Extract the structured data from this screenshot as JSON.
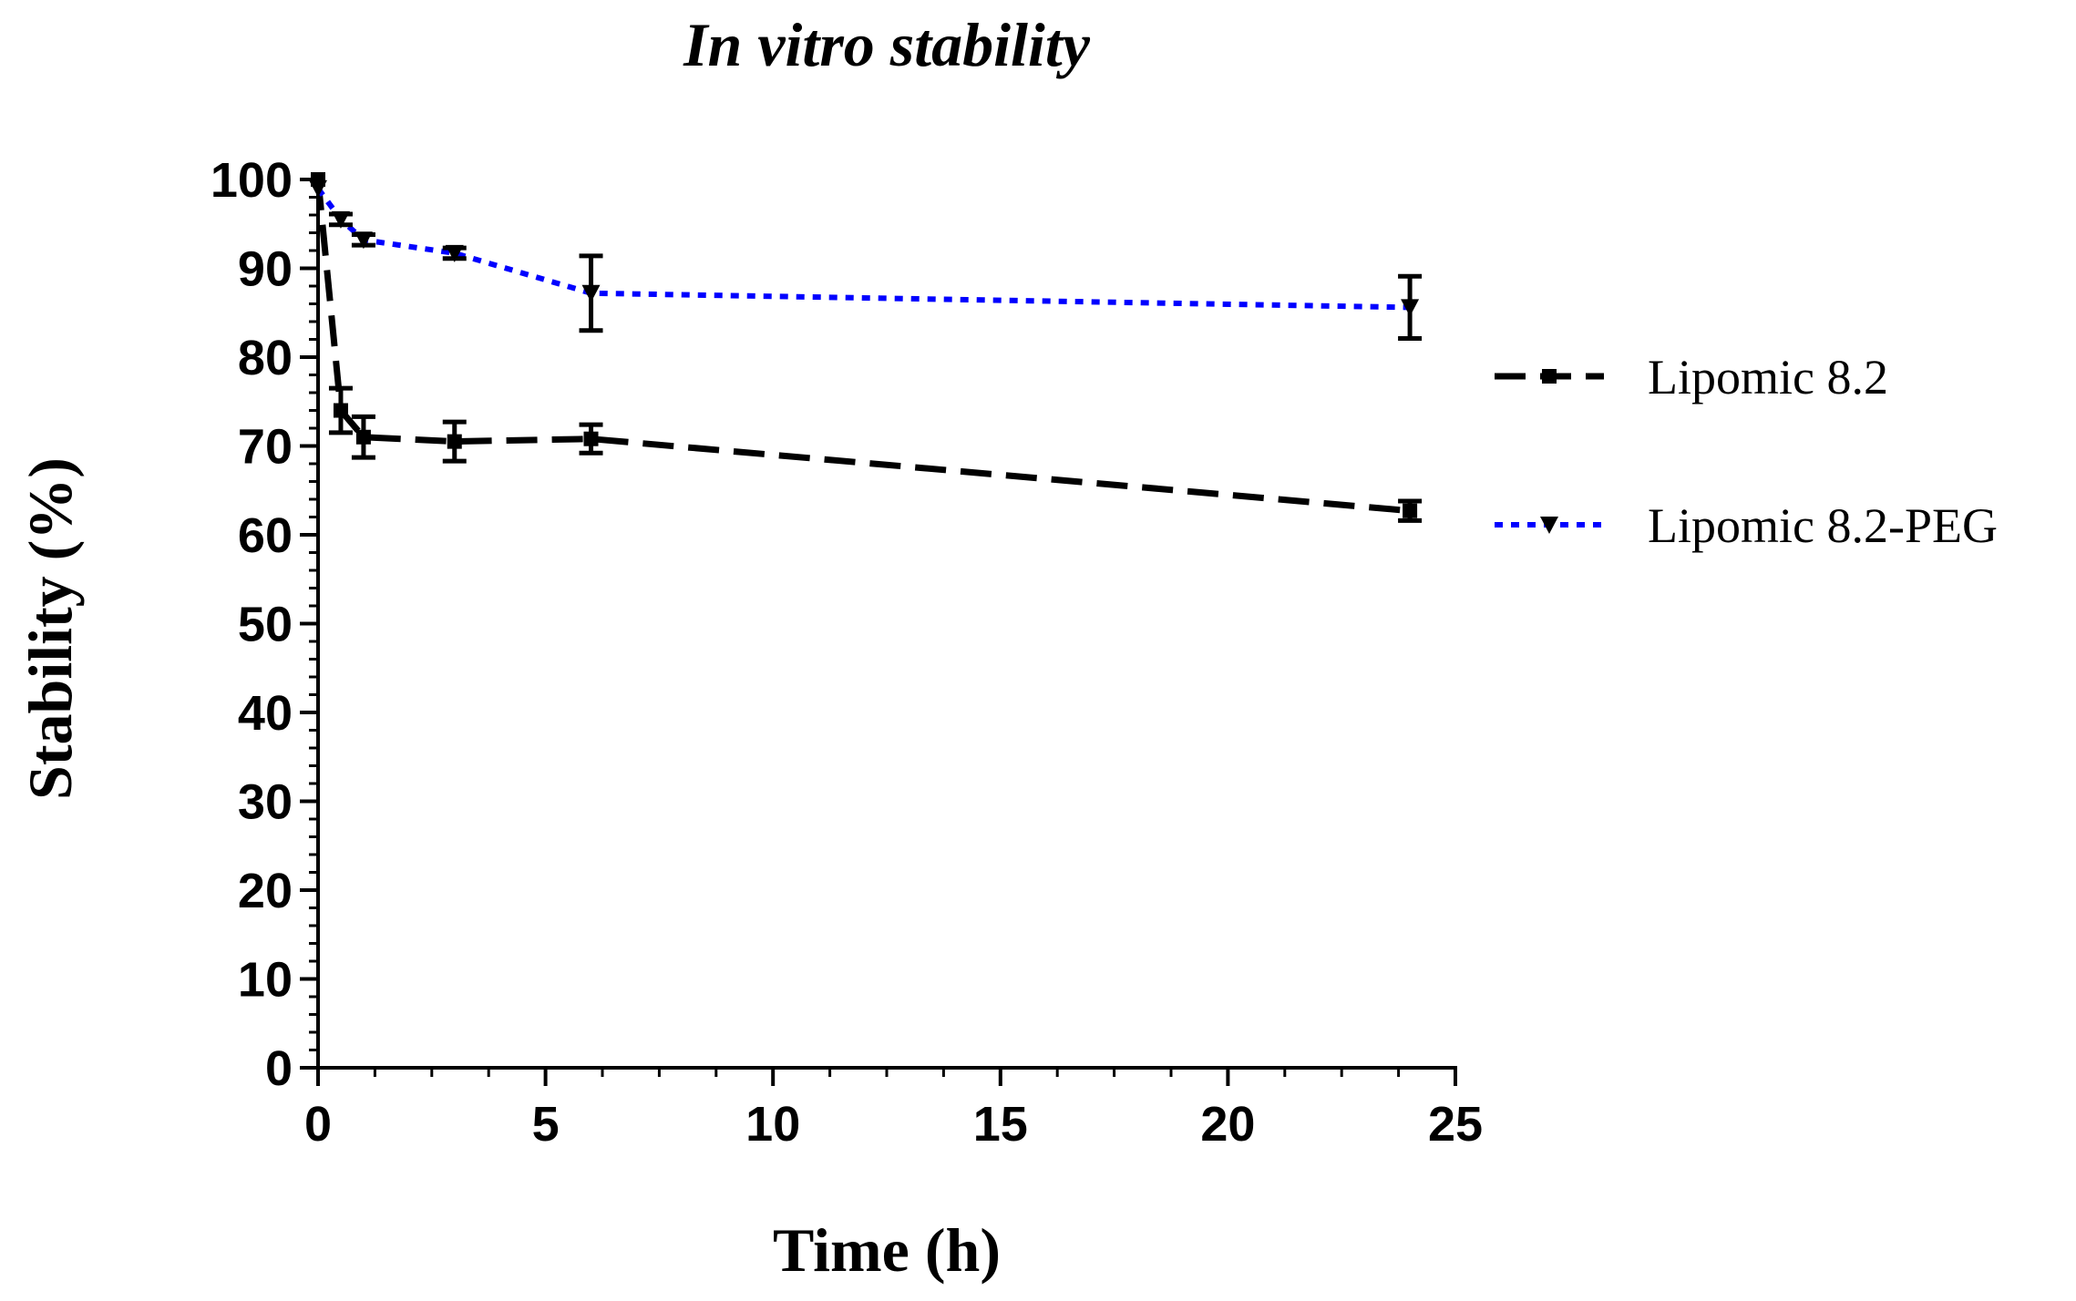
{
  "chart_data": {
    "type": "line",
    "title": "In vitro stability",
    "xlabel": "Time (h)",
    "ylabel": "Stability (%)",
    "xlim": [
      0,
      25
    ],
    "ylim": [
      0,
      100
    ],
    "x_ticks": [
      0,
      5,
      10,
      15,
      20,
      25
    ],
    "y_ticks": [
      0,
      10,
      20,
      30,
      40,
      50,
      60,
      70,
      80,
      90,
      100
    ],
    "x_minor_step": 1.25,
    "y_minor_step": 2,
    "grid": false,
    "legend_position": "right",
    "series": [
      {
        "name": "Lipomic 8.2",
        "color": "#000000",
        "line_style": "dashed",
        "marker": "square",
        "x": [
          0,
          0.5,
          1,
          3,
          6,
          24
        ],
        "y": [
          100,
          74,
          71,
          70.5,
          70.8,
          62.7
        ],
        "err": [
          0,
          2.5,
          2.3,
          2.2,
          1.6,
          1.1
        ]
      },
      {
        "name": "Lipomic 8.2-PEG",
        "color": "#0000ff",
        "line_style": "dotted",
        "marker": "triangle-down",
        "x": [
          0,
          0.5,
          1,
          3,
          6,
          24
        ],
        "y": [
          99,
          95.5,
          93.2,
          91.7,
          87.2,
          85.6
        ],
        "err": [
          0,
          0.6,
          0.6,
          0.6,
          4.2,
          3.5
        ]
      }
    ]
  }
}
